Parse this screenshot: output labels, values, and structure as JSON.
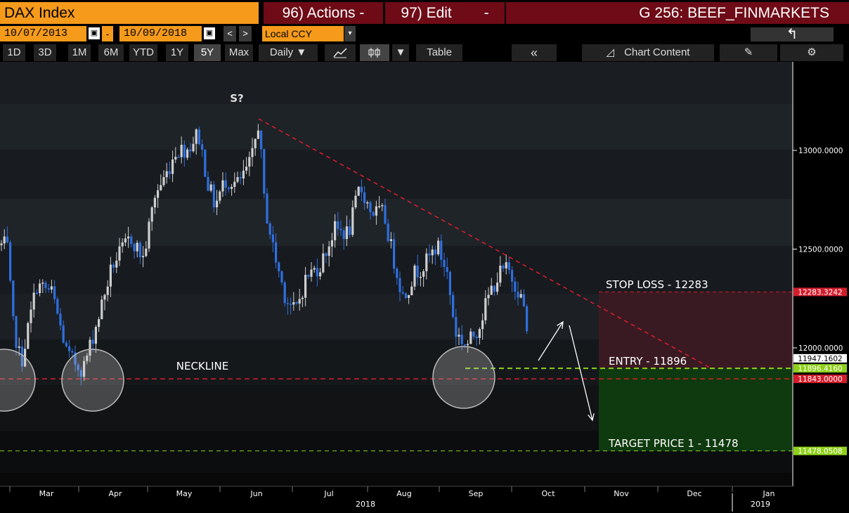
{
  "top_bar": {
    "title": "DAX Index",
    "actions_label": "96) Actions -",
    "edit_label": "97) Edit",
    "edit_caret": "-",
    "chart_name": "G 256: BEEF_FINMARKETS"
  },
  "date_bar": {
    "start_date": "10/07/2013",
    "end_date": "10/09/2018",
    "separator": "-",
    "prev": "<",
    "next": ">",
    "currency": "Local CCY",
    "currency_caret": "▾",
    "undo": "↰"
  },
  "toolbar": {
    "periods": [
      "1D",
      "3D",
      "1M",
      "6M",
      "YTD",
      "1Y",
      "5Y",
      "Max"
    ],
    "selected_period": "5Y",
    "frequency": "Daily ▼",
    "candle_caret": "▼",
    "table": "Table",
    "collapse": "«",
    "chart_content": "Chart Content"
  },
  "chart_data": {
    "type": "candlestick",
    "y_ticks": [
      "13000.0000",
      "12500.0000",
      "12000.0000"
    ],
    "x_labels": [
      "Mar",
      "Apr",
      "May",
      "Jun",
      "Jul",
      "Aug",
      "Sep",
      "Oct",
      "Nov",
      "Dec",
      "Jan"
    ],
    "x_year_labels": [
      "2018",
      "2019"
    ],
    "price_tags": [
      {
        "value": "12283.3242",
        "color": "#d31d2c"
      },
      {
        "value": "11947.1602",
        "color": "#ffffff"
      },
      {
        "value": "11896.4160",
        "color": "#8fd11a"
      },
      {
        "value": "11843.0000",
        "color": "#d31d2c"
      },
      {
        "value": "11478.0508",
        "color": "#8fd11a"
      }
    ],
    "annotations": {
      "shoulder": "S?",
      "neckline": "NECKLINE",
      "stop_loss": "STOP LOSS - 12283",
      "entry": "ENTRY - 11896",
      "target": "TARGET PRICE 1 - 11478"
    },
    "neckline_value": 11843,
    "entry_value": 11896.416,
    "stop_value": 12283.3242,
    "target_value": 11478.0508,
    "last_value": 11947.1602,
    "colors": {
      "up": "#cfcfcf",
      "down": "#2f6fe0",
      "accent": "#f59a1b",
      "header": "#6e0b17"
    }
  }
}
